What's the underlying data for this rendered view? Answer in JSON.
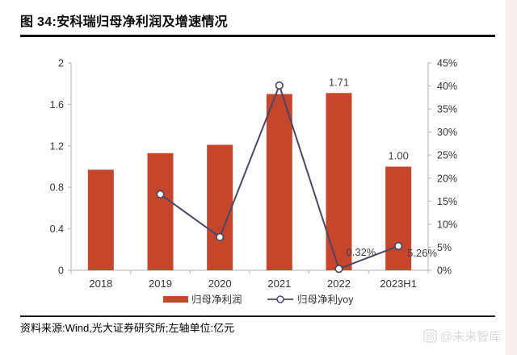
{
  "header": {
    "title": "图 34:安科瑞归母净利润及增速情况"
  },
  "footer": {
    "source": "资料来源:Wind,光大证券研究所;左轴单位:亿元",
    "watermark": "@未来智库",
    "watermark_icon": "paw-logo"
  },
  "chart_data": {
    "type": "bar+line",
    "title": "安科瑞归母净利润及增速情况",
    "categories": [
      "2018",
      "2019",
      "2020",
      "2021",
      "2022",
      "2023H1"
    ],
    "series": [
      {
        "name": "归母净利润",
        "chart": "bar",
        "axis": "left",
        "color": "#C6462B",
        "values": [
          0.97,
          1.13,
          1.21,
          1.7,
          1.71,
          1.0
        ],
        "point_labels": [
          {
            "index": 4,
            "text": "1.71"
          },
          {
            "index": 5,
            "text": "1.00"
          }
        ]
      },
      {
        "name": "归母净利yoy",
        "chart": "line",
        "axis": "right",
        "color": "#4A4666",
        "marker": "open-circle",
        "values": [
          null,
          16.5,
          7.2,
          40.1,
          0.32,
          5.26
        ],
        "point_labels": [
          {
            "index": 4,
            "text": "0.32%",
            "placement": "right-above"
          },
          {
            "index": 5,
            "text": "5.26%",
            "placement": "right-below"
          }
        ]
      }
    ],
    "left_axis": {
      "min": 0,
      "max": 2,
      "ticks": [
        0,
        0.4,
        0.8,
        1.2,
        1.6,
        2
      ],
      "labels": [
        "0",
        "0.4",
        "0.8",
        "1.2",
        "1.6",
        "2"
      ]
    },
    "right_axis": {
      "min": 0,
      "max": 45,
      "ticks": [
        0,
        5,
        10,
        15,
        20,
        25,
        30,
        35,
        40,
        45
      ],
      "labels": [
        "0%",
        "5%",
        "10%",
        "15%",
        "20%",
        "25%",
        "30%",
        "35%",
        "40%",
        "45%"
      ]
    },
    "grid": false,
    "legend_position": "bottom"
  }
}
